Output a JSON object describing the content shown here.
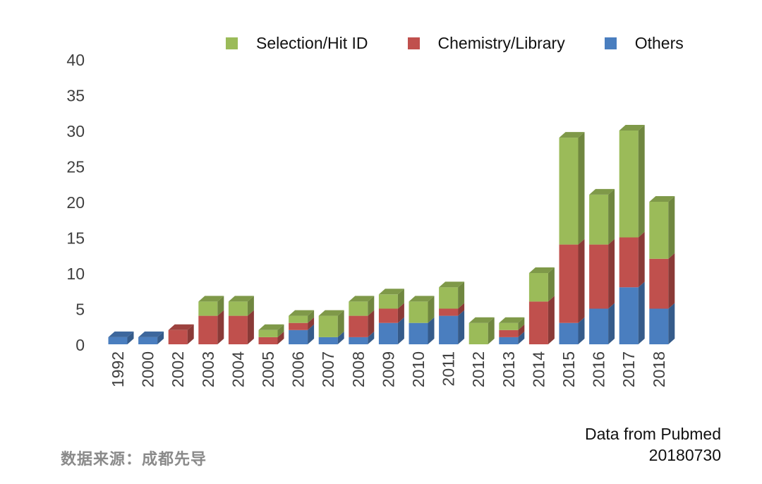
{
  "chart_data": {
    "type": "bar",
    "stacked": true,
    "categories": [
      "1992",
      "2000",
      "2002",
      "2003",
      "2004",
      "2005",
      "2006",
      "2007",
      "2008",
      "2009",
      "2010",
      "2011",
      "2012",
      "2013",
      "2014",
      "2015",
      "2016",
      "2017",
      "2018"
    ],
    "series": [
      {
        "name": "Others",
        "color": "#4a7ebf",
        "values": [
          1,
          1,
          0,
          0,
          0,
          0,
          2,
          1,
          1,
          3,
          3,
          4,
          0,
          1,
          0,
          3,
          5,
          8,
          5
        ]
      },
      {
        "name": "Chemistry/Library",
        "color": "#c0504d",
        "values": [
          0,
          0,
          2,
          4,
          4,
          1,
          1,
          0,
          3,
          2,
          0,
          1,
          0,
          1,
          6,
          11,
          9,
          7,
          7
        ]
      },
      {
        "name": "Selection/Hit ID",
        "color": "#9bbb59",
        "values": [
          0,
          0,
          0,
          2,
          2,
          1,
          1,
          3,
          2,
          2,
          3,
          3,
          3,
          1,
          4,
          15,
          7,
          15,
          8
        ]
      }
    ],
    "legend_order": [
      "Selection/Hit ID",
      "Chemistry/Library",
      "Others"
    ],
    "yticks": [
      "0",
      "5",
      "10",
      "15",
      "20",
      "25",
      "30",
      "35",
      "40"
    ],
    "ylim": [
      0,
      40
    ],
    "legend_position": "top",
    "source_line1": "Data from Pubmed",
    "source_line2": "20180730",
    "watermark": "数据来源：成都先导"
  }
}
